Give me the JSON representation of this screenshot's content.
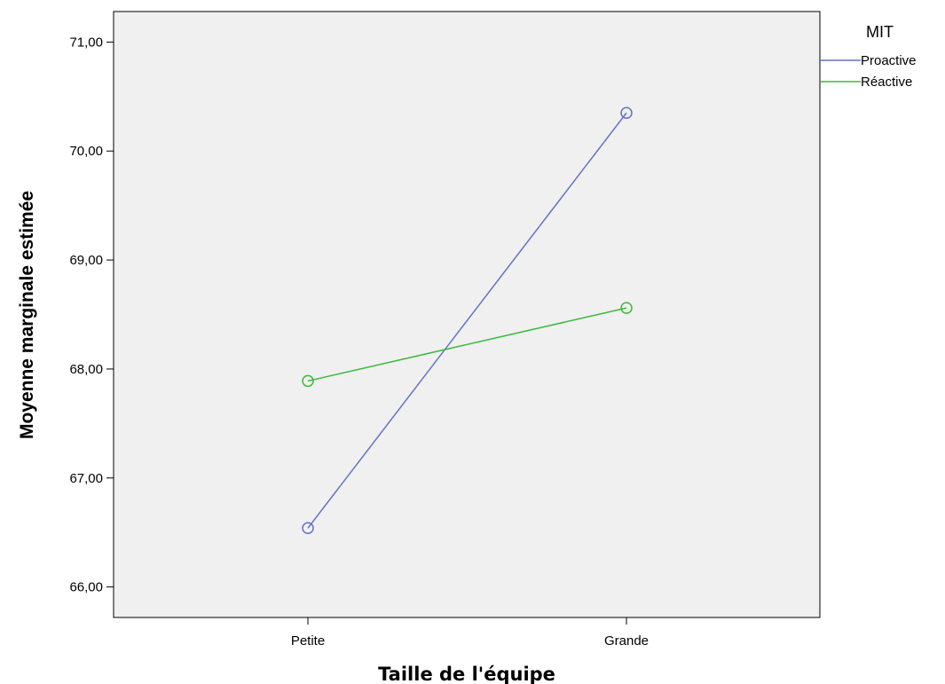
{
  "chart_data": {
    "type": "line",
    "categories": [
      "Petite",
      "Grande"
    ],
    "series": [
      {
        "name": "Proactive",
        "values": [
          66.54,
          70.35
        ],
        "color": "#6272c4"
      },
      {
        "name": "Réactive",
        "values": [
          67.89,
          68.56
        ],
        "color": "#3cb93c"
      }
    ],
    "xlabel": "Taille de l'équipe",
    "ylabel": "Moyenne marginale estimée",
    "ylim": [
      65.72,
      71.28
    ],
    "yticks": [
      66,
      67,
      68,
      69,
      70,
      71
    ],
    "ytick_labels": [
      "66,00",
      "67,00",
      "68,00",
      "69,00",
      "70,00",
      "71,00"
    ],
    "legend_title": "MIT",
    "legend_position": "top-right outside plot",
    "grid": false,
    "plot_background": "#f0f0f0",
    "marker": "open-circle"
  }
}
